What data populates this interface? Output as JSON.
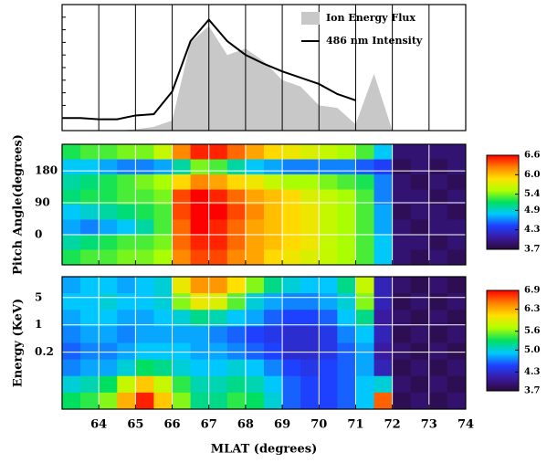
{
  "chart_data": [
    {
      "type": "line",
      "x": [
        63,
        63.5,
        64,
        64.5,
        65,
        65.5,
        66,
        66.5,
        67,
        67.5,
        68,
        68.5,
        69,
        69.5,
        70,
        70.5,
        71,
        71.5,
        72,
        72.5,
        73,
        73.5,
        74
      ],
      "xlim": [
        63,
        74
      ],
      "xticks": [
        64,
        65,
        66,
        67,
        68,
        69,
        70,
        71,
        72,
        73,
        74
      ],
      "ylim": [
        0,
        100
      ],
      "grid": true,
      "legend": "upper right",
      "series": [
        {
          "name": "Ion Energy Flux",
          "color": "#c8c8c8",
          "fill": true,
          "values": [
            0,
            0,
            0,
            0,
            1,
            3,
            8,
            70,
            83,
            60,
            65,
            55,
            40,
            35,
            20,
            18,
            5,
            45,
            0,
            0,
            0,
            0,
            0
          ]
        },
        {
          "name": "486 nm Intensity",
          "color": "#000000",
          "values": [
            10,
            10,
            9,
            9,
            12,
            13,
            31,
            71,
            88,
            71,
            60,
            53,
            47,
            42,
            37,
            29,
            24,
            null,
            null,
            null,
            null,
            null,
            null
          ]
        }
      ]
    },
    {
      "type": "heatmap",
      "x": [
        63.25,
        63.75,
        64.25,
        64.75,
        65.25,
        65.75,
        66.25,
        66.75,
        67.25,
        67.75,
        68.25,
        68.75,
        69.25,
        69.75,
        70.25,
        70.75,
        71.25,
        71.75,
        72.25,
        72.75,
        73.25,
        73.75
      ],
      "xlim": [
        63,
        74
      ],
      "xticks": [
        64,
        65,
        66,
        67,
        68,
        69,
        70,
        71,
        72,
        73,
        74
      ],
      "ylim": [
        -85,
        255
      ],
      "yticks": [
        0,
        90,
        180
      ],
      "ylabel": "Pitch Angle(degrees)",
      "grid": true,
      "z": [
        [
          5.2,
          5.3,
          5.3,
          5.4,
          5.4,
          5.6,
          6.2,
          6.5,
          6.5,
          6.3,
          6.1,
          5.9,
          5.8,
          5.7,
          5.6,
          5.5,
          5.3,
          4.8,
          3.9,
          3.9,
          3.9,
          3.9
        ],
        [
          4.8,
          4.8,
          4.7,
          4.6,
          4.6,
          4.7,
          5.0,
          5.4,
          5.3,
          5.0,
          4.8,
          4.7,
          4.6,
          4.6,
          4.6,
          4.6,
          4.5,
          4.4,
          3.8,
          3.9,
          3.8,
          3.9
        ],
        [
          5.0,
          5.1,
          5.2,
          5.3,
          5.4,
          5.5,
          5.9,
          6.2,
          6.1,
          5.9,
          5.8,
          5.6,
          5.5,
          5.5,
          5.4,
          5.3,
          5.2,
          4.6,
          3.9,
          3.8,
          3.9,
          3.8
        ],
        [
          5.1,
          5.2,
          5.2,
          5.3,
          5.3,
          5.4,
          6.4,
          6.6,
          6.5,
          6.3,
          6.1,
          6.0,
          5.9,
          5.7,
          5.6,
          5.5,
          5.3,
          4.6,
          3.9,
          3.9,
          3.8,
          3.9
        ],
        [
          4.8,
          4.9,
          5.0,
          5.1,
          5.2,
          5.3,
          6.4,
          6.6,
          6.6,
          6.4,
          6.2,
          6.0,
          5.9,
          5.8,
          5.6,
          5.5,
          5.3,
          4.7,
          3.8,
          3.9,
          3.9,
          3.8
        ],
        [
          4.7,
          4.6,
          4.7,
          4.8,
          5.0,
          5.3,
          6.3,
          6.6,
          6.5,
          6.3,
          6.1,
          6.0,
          5.9,
          5.8,
          5.6,
          5.5,
          5.3,
          4.7,
          3.9,
          3.8,
          3.9,
          3.9
        ],
        [
          5.0,
          5.1,
          5.2,
          5.3,
          5.3,
          5.4,
          6.3,
          6.5,
          6.5,
          6.3,
          6.1,
          6.0,
          5.9,
          5.8,
          5.6,
          5.5,
          5.3,
          4.8,
          3.9,
          3.9,
          3.8,
          3.9
        ],
        [
          5.2,
          5.3,
          5.3,
          5.4,
          5.4,
          5.5,
          6.2,
          6.4,
          6.4,
          6.2,
          6.1,
          5.9,
          5.8,
          5.7,
          5.6,
          5.5,
          5.3,
          4.8,
          3.9,
          3.8,
          3.9,
          3.8
        ]
      ],
      "zlim": [
        3.7,
        6.6
      ],
      "zticks": [
        3.7,
        4.3,
        4.9,
        5.4,
        {
          "value": 6,
          "label": "6.0"
        },
        6.6
      ],
      "colorscale": [
        "#2a0a3a",
        "#3a1aa0",
        "#1e40ff",
        "#00c8ff",
        "#00e060",
        "#b0ff00",
        "#ffe000",
        "#ff8000",
        "#ff0000"
      ]
    },
    {
      "type": "heatmap",
      "x": [
        63.25,
        63.75,
        64.25,
        64.75,
        65.25,
        65.75,
        66.25,
        66.75,
        67.25,
        67.75,
        68.25,
        68.75,
        69.25,
        69.75,
        70.25,
        70.75,
        71.25,
        71.75,
        72.25,
        72.75,
        73.25,
        73.75
      ],
      "xlim": [
        63,
        74
      ],
      "xticks": [
        64,
        65,
        66,
        67,
        68,
        69,
        70,
        71,
        72,
        73,
        74
      ],
      "xlabel": "MLAT (degrees)",
      "ylim": [
        0.007,
        17
      ],
      "yscale": "log",
      "yticks": [
        0.2,
        1,
        5
      ],
      "ylabel": "Energy (KeV)",
      "grid": true,
      "z": [
        [
          4.8,
          4.9,
          4.9,
          4.8,
          4.9,
          5.0,
          6.0,
          6.4,
          6.4,
          6.1,
          5.6,
          5.2,
          5.0,
          4.9,
          4.9,
          5.2,
          5.8,
          4.2,
          3.9,
          3.8,
          3.9,
          3.8
        ],
        [
          4.9,
          4.9,
          5.0,
          4.9,
          4.9,
          5.0,
          5.6,
          6.0,
          5.9,
          5.5,
          5.0,
          4.8,
          4.7,
          4.7,
          4.8,
          5.0,
          5.6,
          4.2,
          3.8,
          3.9,
          3.8,
          3.9
        ],
        [
          4.8,
          4.9,
          4.9,
          4.8,
          4.8,
          4.9,
          5.0,
          5.2,
          5.1,
          4.9,
          4.8,
          4.6,
          4.5,
          4.5,
          4.6,
          4.9,
          5.2,
          4.1,
          3.9,
          3.8,
          3.9,
          3.8
        ],
        [
          4.7,
          4.8,
          4.8,
          4.7,
          4.8,
          4.8,
          4.8,
          4.8,
          4.7,
          4.6,
          4.5,
          4.4,
          4.3,
          4.3,
          4.4,
          4.7,
          4.9,
          4.2,
          3.8,
          3.9,
          3.8,
          3.9
        ],
        [
          4.6,
          4.7,
          4.7,
          4.8,
          4.9,
          4.9,
          4.9,
          4.8,
          4.8,
          4.7,
          4.6,
          4.5,
          4.3,
          4.3,
          4.4,
          4.6,
          4.8,
          4.1,
          3.9,
          3.8,
          3.9,
          3.8
        ],
        [
          4.7,
          4.8,
          4.8,
          5.0,
          5.3,
          5.2,
          5.0,
          4.9,
          4.9,
          5.0,
          4.9,
          4.7,
          4.5,
          4.4,
          4.5,
          4.6,
          4.8,
          4.2,
          3.8,
          3.9,
          3.8,
          3.9
        ],
        [
          5.0,
          5.1,
          5.3,
          5.8,
          6.2,
          5.8,
          5.4,
          5.1,
          5.1,
          5.2,
          5.1,
          4.9,
          4.6,
          4.5,
          4.5,
          4.6,
          4.9,
          5.0,
          3.9,
          3.8,
          3.9,
          3.8
        ],
        [
          5.3,
          5.4,
          5.6,
          6.3,
          6.8,
          6.2,
          5.6,
          5.2,
          5.2,
          5.4,
          5.3,
          5.0,
          4.6,
          4.5,
          4.5,
          4.6,
          4.9,
          6.6,
          3.8,
          3.9,
          3.8,
          3.9
        ]
      ],
      "zlim": [
        3.7,
        6.9
      ],
      "zticks": [
        3.7,
        4.3,
        {
          "value": 5,
          "label": "5.0"
        },
        5.6,
        6.3,
        6.9
      ],
      "colorscale": [
        "#2a0a3a",
        "#3a1aa0",
        "#1e40ff",
        "#00c8ff",
        "#00e060",
        "#b0ff00",
        "#ffe000",
        "#ff8000",
        "#ff0000"
      ]
    }
  ]
}
